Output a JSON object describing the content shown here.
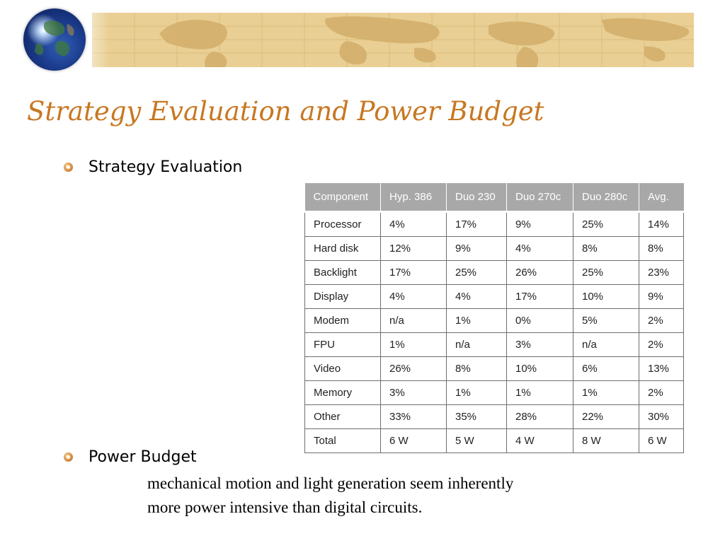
{
  "slide": {
    "title": "Strategy Evaluation and Power Budget",
    "bullets": [
      {
        "label": "Strategy Evaluation"
      },
      {
        "label": "Power Budget"
      }
    ],
    "description_lines": [
      "mechanical motion and light generation seem inherently",
      "more power intensive than digital circuits."
    ]
  },
  "table": {
    "headers": [
      "Component",
      "Hyp. 386",
      "Duo 230",
      "Duo 270c",
      "Duo 280c",
      "Avg."
    ],
    "rows": [
      [
        "Processor",
        "4%",
        "17%",
        "9%",
        "25%",
        "14%"
      ],
      [
        "Hard disk",
        "12%",
        "9%",
        "4%",
        "8%",
        "8%"
      ],
      [
        "Backlight",
        "17%",
        "25%",
        "26%",
        "25%",
        "23%"
      ],
      [
        "Display",
        "4%",
        "4%",
        "17%",
        "10%",
        "9%"
      ],
      [
        "Modem",
        "n/a",
        "1%",
        "0%",
        "5%",
        "2%"
      ],
      [
        "FPU",
        "1%",
        "n/a",
        "3%",
        "n/a",
        "2%"
      ],
      [
        "Video",
        "26%",
        "8%",
        "10%",
        "6%",
        "13%"
      ],
      [
        "Memory",
        "3%",
        "1%",
        "1%",
        "1%",
        "2%"
      ],
      [
        "Other",
        "33%",
        "35%",
        "28%",
        "22%",
        "30%"
      ],
      [
        "Total",
        "6 W",
        "5 W",
        "4 W",
        "8 W",
        "6 W"
      ]
    ]
  },
  "icons": {
    "logo": "globe-icon",
    "banner": "world-map-banner",
    "bullet": "orange-bullet-icon"
  },
  "colors": {
    "title": "#c87721",
    "banner": "#e9cf93",
    "table_header": "#a8a8a8"
  }
}
